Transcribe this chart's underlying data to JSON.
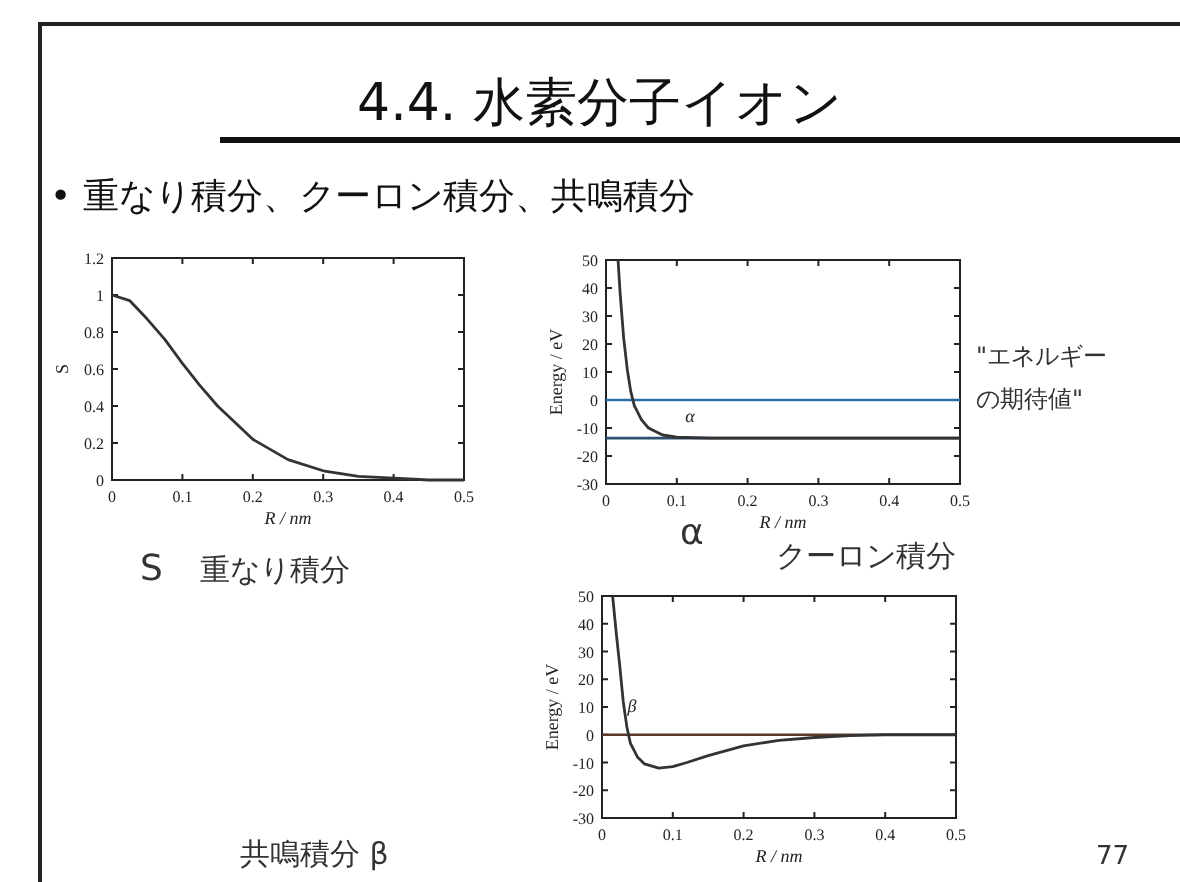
{
  "chart_data": [
    {
      "type": "line",
      "title": "4.4. 水素分子イオン",
      "subtitle": "• 重なり積分、クーロン積分、共鳴積分",
      "xlabel": "R / nm",
      "ylabel": "S",
      "xlim": [
        0,
        0.5
      ],
      "ylim": [
        0,
        1.2
      ],
      "xticks": [
        0,
        0.1,
        0.2,
        0.3,
        0.4,
        0.5
      ],
      "yticks": [
        0,
        0.2,
        0.4,
        0.6,
        0.8,
        1,
        1.2
      ],
      "x": [
        0,
        0.025,
        0.05,
        0.075,
        0.1,
        0.125,
        0.15,
        0.2,
        0.25,
        0.3,
        0.35,
        0.4,
        0.45,
        0.5
      ],
      "series": [
        {
          "color": "#333333",
          "values": [
            1,
            0.97,
            0.87,
            0.76,
            0.63,
            0.51,
            0.4,
            0.22,
            0.11,
            0.05,
            0.02,
            0.01,
            0,
            0
          ]
        }
      ],
      "annotations": [
        "S",
        "重なり積分"
      ]
    },
    {
      "type": "line",
      "xlabel": "R / nm",
      "ylabel": "Energy / eV",
      "xlim": [
        0,
        0.5
      ],
      "ylim": [
        -30,
        50
      ],
      "xticks": [
        0,
        0.1,
        0.2,
        0.3,
        0.4,
        0.5
      ],
      "yticks": [
        -30,
        -20,
        -10,
        0,
        10,
        20,
        30,
        40,
        50
      ],
      "x": [
        0.017,
        0.02,
        0.025,
        0.03,
        0.035,
        0.04,
        0.05,
        0.06,
        0.08,
        0.1,
        0.15,
        0.2,
        0.3,
        0.4,
        0.5
      ],
      "series": [
        {
          "color": "#333333",
          "values": [
            50,
            38,
            22,
            11,
            3,
            -2,
            -7,
            -10,
            -12.5,
            -13.3,
            -13.6,
            -13.6,
            -13.6,
            -13.6,
            -13.6
          ]
        }
      ],
      "ref_lines": [
        {
          "axis": "y",
          "value": 0,
          "color": "#2a6fa8"
        },
        {
          "axis": "y",
          "value": -13.6,
          "color": "#2f4f6f"
        }
      ],
      "annotations": [
        "α",
        "α",
        "クーロン積分",
        "\"エネルギーの期待値\""
      ]
    },
    {
      "type": "line",
      "xlabel": "R / nm",
      "ylabel": "Energy / eV",
      "xlim": [
        0,
        0.5
      ],
      "ylim": [
        -30,
        50
      ],
      "xticks": [
        0,
        0.1,
        0.2,
        0.3,
        0.4,
        0.5
      ],
      "yticks": [
        -30,
        -20,
        -10,
        0,
        10,
        20,
        30,
        40,
        50
      ],
      "x": [
        0.015,
        0.02,
        0.025,
        0.03,
        0.035,
        0.04,
        0.05,
        0.06,
        0.08,
        0.1,
        0.12,
        0.15,
        0.2,
        0.25,
        0.3,
        0.35,
        0.4,
        0.5
      ],
      "series": [
        {
          "color": "#333333",
          "values": [
            50,
            37,
            25,
            12,
            3,
            -3,
            -8,
            -10.5,
            -12,
            -11.5,
            -10,
            -7.5,
            -4,
            -2,
            -1,
            -0.3,
            0,
            0
          ]
        }
      ],
      "ref_lines": [
        {
          "axis": "y",
          "value": 0,
          "color": "#5a3a2a"
        }
      ],
      "annotations": [
        "β",
        "共鳴積分 β",
        "77"
      ]
    }
  ]
}
